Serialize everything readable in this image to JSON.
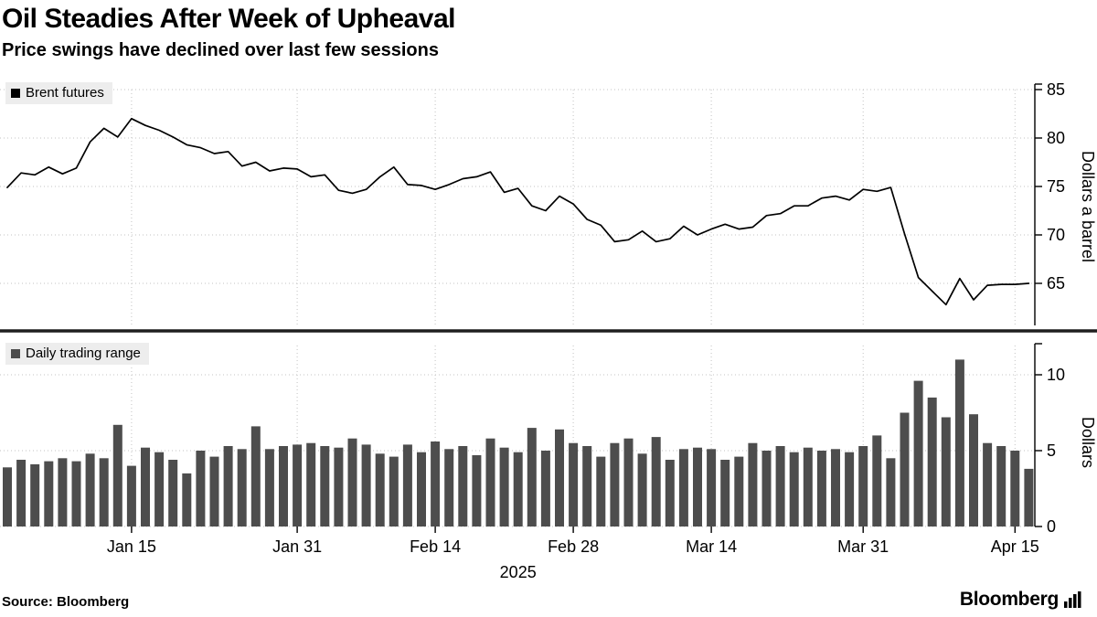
{
  "header": {
    "title": "Oil Steadies After Week of Upheaval",
    "subtitle": "Price swings have declined over last few sessions"
  },
  "colors": {
    "line": "#000000",
    "bar": "#4d4d4d",
    "grid": "#c3c3c3",
    "separator": "#1f1f1f",
    "legend_bg": "#ededed",
    "text": "#000000"
  },
  "x_axis": {
    "ticks": [
      {
        "label": "Jan 15",
        "index": 9
      },
      {
        "label": "Jan 31",
        "index": 21
      },
      {
        "label": "Feb 14",
        "index": 31
      },
      {
        "label": "Feb 28",
        "index": 41
      },
      {
        "label": "Mar 14",
        "index": 51
      },
      {
        "label": "Mar 31",
        "index": 62
      },
      {
        "label": "Apr 15",
        "index": 73
      }
    ],
    "year_label": "2025"
  },
  "footer": {
    "source": "Source: Bloomberg",
    "brand": "Bloomberg"
  },
  "chart_data": [
    {
      "type": "line",
      "title": "Brent futures",
      "ylabel": "Dollars a barrel",
      "ylim": [
        62,
        86
      ],
      "yticks": [
        65,
        70,
        75,
        80,
        85
      ],
      "grid": true,
      "legend_position": "top-left",
      "color": "#000000",
      "x": [
        "Jan 2",
        "Jan 3",
        "Jan 6",
        "Jan 7",
        "Jan 8",
        "Jan 9",
        "Jan 10",
        "Jan 13",
        "Jan 14",
        "Jan 15",
        "Jan 16",
        "Jan 17",
        "Jan 20",
        "Jan 21",
        "Jan 22",
        "Jan 23",
        "Jan 24",
        "Jan 27",
        "Jan 28",
        "Jan 29",
        "Jan 30",
        "Jan 31",
        "Feb 3",
        "Feb 4",
        "Feb 5",
        "Feb 6",
        "Feb 7",
        "Feb 10",
        "Feb 11",
        "Feb 12",
        "Feb 13",
        "Feb 14",
        "Feb 17",
        "Feb 18",
        "Feb 19",
        "Feb 20",
        "Feb 21",
        "Feb 24",
        "Feb 25",
        "Feb 26",
        "Feb 27",
        "Feb 28",
        "Mar 3",
        "Mar 4",
        "Mar 5",
        "Mar 6",
        "Mar 7",
        "Mar 10",
        "Mar 11",
        "Mar 12",
        "Mar 13",
        "Mar 14",
        "Mar 17",
        "Mar 18",
        "Mar 19",
        "Mar 20",
        "Mar 21",
        "Mar 24",
        "Mar 25",
        "Mar 26",
        "Mar 27",
        "Mar 28",
        "Mar 31",
        "Apr 1",
        "Apr 2",
        "Apr 3",
        "Apr 4",
        "Apr 7",
        "Apr 8",
        "Apr 9",
        "Apr 10",
        "Apr 11",
        "Apr 14",
        "Apr 15",
        "Apr 16"
      ],
      "values": [
        74.9,
        76.4,
        76.2,
        77.0,
        76.3,
        76.9,
        79.6,
        81.0,
        80.1,
        82.0,
        81.3,
        80.8,
        80.1,
        79.3,
        79.0,
        78.4,
        78.6,
        77.1,
        77.5,
        76.6,
        76.9,
        76.8,
        76.0,
        76.2,
        74.6,
        74.3,
        74.7,
        76.0,
        77.0,
        75.2,
        75.1,
        74.7,
        75.2,
        75.8,
        76.0,
        76.5,
        74.4,
        74.8,
        73.0,
        72.5,
        74.0,
        73.2,
        71.6,
        71.0,
        69.3,
        69.5,
        70.4,
        69.3,
        69.6,
        70.9,
        70.0,
        70.6,
        71.1,
        70.6,
        70.8,
        72.0,
        72.2,
        73.0,
        73.0,
        73.8,
        74.0,
        73.6,
        74.7,
        74.5,
        74.9,
        70.1,
        65.6,
        64.2,
        62.8,
        65.5,
        63.3,
        64.8,
        64.9,
        64.9,
        65.0
      ]
    },
    {
      "type": "bar",
      "title": "Daily trading range",
      "ylabel": "Dollars",
      "ylim": [
        0,
        11.5
      ],
      "yticks": [
        0,
        5,
        10
      ],
      "grid": true,
      "legend_position": "top-left",
      "color": "#4d4d4d",
      "x": [
        "Jan 2",
        "Jan 3",
        "Jan 6",
        "Jan 7",
        "Jan 8",
        "Jan 9",
        "Jan 10",
        "Jan 13",
        "Jan 14",
        "Jan 15",
        "Jan 16",
        "Jan 17",
        "Jan 20",
        "Jan 21",
        "Jan 22",
        "Jan 23",
        "Jan 24",
        "Jan 27",
        "Jan 28",
        "Jan 29",
        "Jan 30",
        "Jan 31",
        "Feb 3",
        "Feb 4",
        "Feb 5",
        "Feb 6",
        "Feb 7",
        "Feb 10",
        "Feb 11",
        "Feb 12",
        "Feb 13",
        "Feb 14",
        "Feb 17",
        "Feb 18",
        "Feb 19",
        "Feb 20",
        "Feb 21",
        "Feb 24",
        "Feb 25",
        "Feb 26",
        "Feb 27",
        "Feb 28",
        "Mar 3",
        "Mar 4",
        "Mar 5",
        "Mar 6",
        "Mar 7",
        "Mar 10",
        "Mar 11",
        "Mar 12",
        "Mar 13",
        "Mar 14",
        "Mar 17",
        "Mar 18",
        "Mar 19",
        "Mar 20",
        "Mar 21",
        "Mar 24",
        "Mar 25",
        "Mar 26",
        "Mar 27",
        "Mar 28",
        "Mar 31",
        "Apr 1",
        "Apr 2",
        "Apr 3",
        "Apr 4",
        "Apr 7",
        "Apr 8",
        "Apr 9",
        "Apr 10",
        "Apr 11",
        "Apr 14",
        "Apr 15",
        "Apr 16"
      ],
      "values": [
        3.9,
        4.4,
        4.1,
        4.3,
        4.5,
        4.3,
        4.8,
        4.5,
        6.7,
        4.0,
        5.2,
        4.9,
        4.4,
        3.5,
        5.0,
        4.6,
        5.3,
        5.1,
        6.6,
        5.1,
        5.3,
        5.4,
        5.5,
        5.3,
        5.2,
        5.8,
        5.4,
        4.8,
        4.6,
        5.4,
        4.9,
        5.6,
        5.1,
        5.3,
        4.7,
        5.8,
        5.2,
        4.9,
        6.5,
        5.0,
        6.4,
        5.5,
        5.3,
        4.6,
        5.5,
        5.8,
        4.8,
        5.9,
        4.4,
        5.1,
        5.2,
        5.1,
        4.4,
        4.6,
        5.5,
        5.0,
        5.3,
        4.9,
        5.2,
        5.0,
        5.1,
        4.9,
        5.3,
        6.0,
        4.5,
        7.5,
        9.6,
        8.5,
        7.2,
        11.0,
        7.4,
        5.5,
        5.3,
        5.0,
        3.8
      ]
    }
  ]
}
